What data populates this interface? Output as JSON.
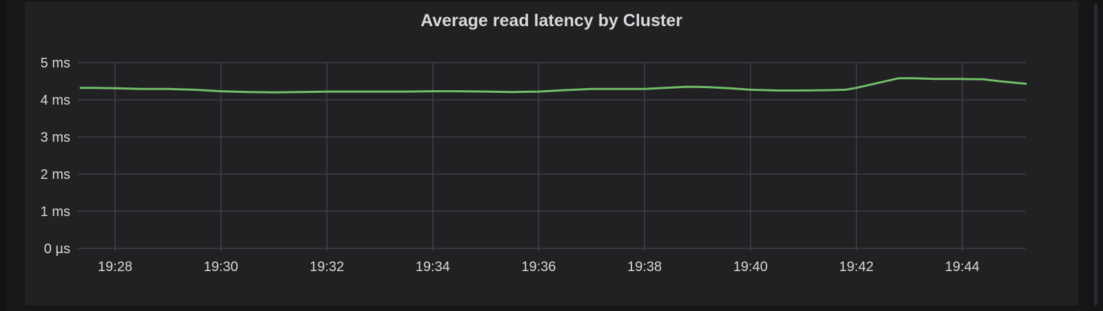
{
  "panel": {
    "title": "Average read latency by Cluster"
  },
  "colors": {
    "page_background": "#161719",
    "panel_background": "#212124",
    "grid": "#45464b",
    "text": "#d8d9da",
    "series_line": "#73bf69"
  },
  "chart_data": {
    "type": "line",
    "title": "Average read latency by Cluster",
    "xlabel": "",
    "ylabel": "",
    "x_unit": "minutes (time of day)",
    "y_unit": "ms",
    "xlim": [
      "19:27.35",
      "19:45.2"
    ],
    "ylim": [
      0,
      5
    ],
    "x_ticks": [
      "19:28",
      "19:30",
      "19:32",
      "19:34",
      "19:36",
      "19:38",
      "19:40",
      "19:42",
      "19:44"
    ],
    "y_ticks": [
      "0 µs",
      "1 ms",
      "2 ms",
      "3 ms",
      "4 ms",
      "5 ms"
    ],
    "grid": true,
    "legend": "none",
    "series": [
      {
        "color": "#73bf69",
        "x": [
          "19:27.35",
          "19:27.60",
          "19:28.00",
          "19:28.50",
          "19:29.00",
          "19:29.50",
          "19:30.00",
          "19:30.50",
          "19:31.00",
          "19:31.50",
          "19:32.00",
          "19:32.50",
          "19:33.00",
          "19:33.50",
          "19:34.00",
          "19:34.50",
          "19:35.00",
          "19:35.50",
          "19:36.00",
          "19:36.50",
          "19:37.00",
          "19:37.50",
          "19:38.00",
          "19:38.50",
          "19:38.80",
          "19:39.20",
          "19:39.60",
          "19:40.00",
          "19:40.50",
          "19:41.00",
          "19:41.50",
          "19:41.80",
          "19:42.00",
          "19:42.40",
          "19:42.80",
          "19:43.10",
          "19:43.50",
          "19:44.00",
          "19:44.40",
          "19:44.70",
          "19:45.20"
        ],
        "values": [
          4.32,
          4.32,
          4.31,
          4.29,
          4.29,
          4.27,
          4.23,
          4.21,
          4.2,
          4.21,
          4.22,
          4.22,
          4.22,
          4.22,
          4.23,
          4.23,
          4.22,
          4.21,
          4.22,
          4.26,
          4.29,
          4.29,
          4.29,
          4.33,
          4.35,
          4.34,
          4.31,
          4.27,
          4.25,
          4.25,
          4.26,
          4.27,
          4.32,
          4.45,
          4.58,
          4.58,
          4.56,
          4.56,
          4.55,
          4.5,
          4.43
        ]
      }
    ]
  }
}
